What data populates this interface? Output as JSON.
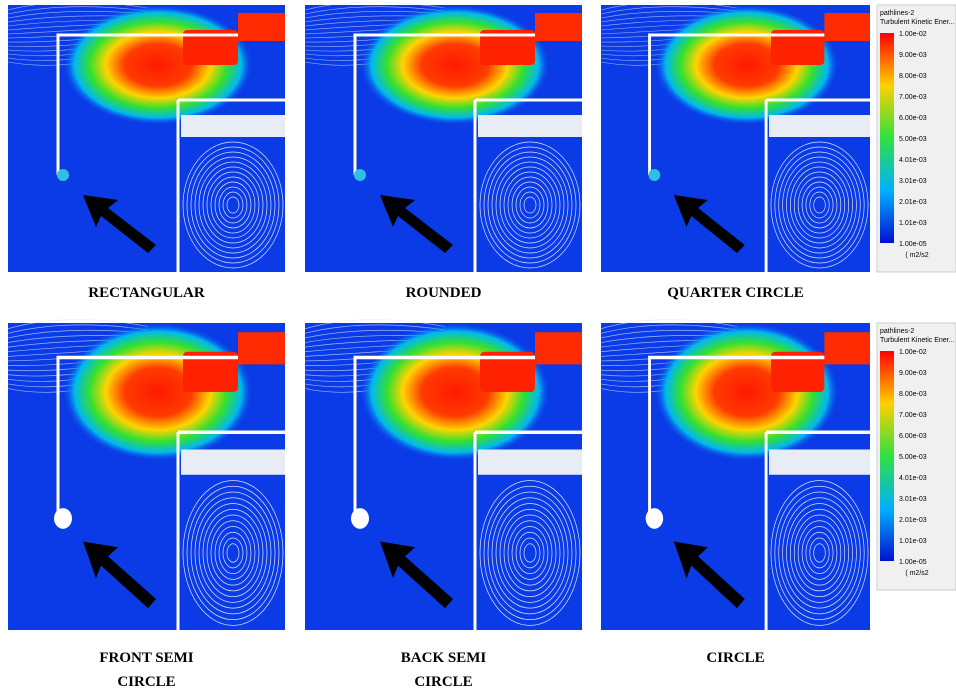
{
  "panels": [
    {
      "label": [
        "RECTANGULAR"
      ]
    },
    {
      "label": [
        "ROUNDED"
      ]
    },
    {
      "label": [
        "QUARTER CIRCLE"
      ]
    },
    {
      "label": [
        "FRONT SEMI",
        "CIRCLE"
      ]
    },
    {
      "label": [
        "BACK SEMI",
        "CIRCLE"
      ]
    },
    {
      "label": [
        "CIRCLE"
      ]
    }
  ],
  "colorbars": [
    {
      "title": "pathlines-2",
      "subtitle": "Turbulent Kinetic Ener...",
      "ticks": [
        "1.00e-02",
        "9.00e-03",
        "8.00e-03",
        "7.00e-03",
        "6.00e-03",
        "5.00e-03",
        "4.01e-03",
        "3.01e-03",
        "2.01e-03",
        "1.01e-03",
        "1.00e-05"
      ],
      "unit": "( m2/s2"
    },
    {
      "title": "pathlines-2",
      "subtitle": "Turbulent Kinetic Ener...",
      "ticks": [
        "1.00e-02",
        "9.00e-03",
        "8.00e-03",
        "7.00e-03",
        "6.00e-03",
        "5.00e-03",
        "4.01e-03",
        "3.01e-03",
        "2.01e-03",
        "1.01e-03",
        "1.00e-05"
      ],
      "unit": "( m2/s2"
    }
  ]
}
